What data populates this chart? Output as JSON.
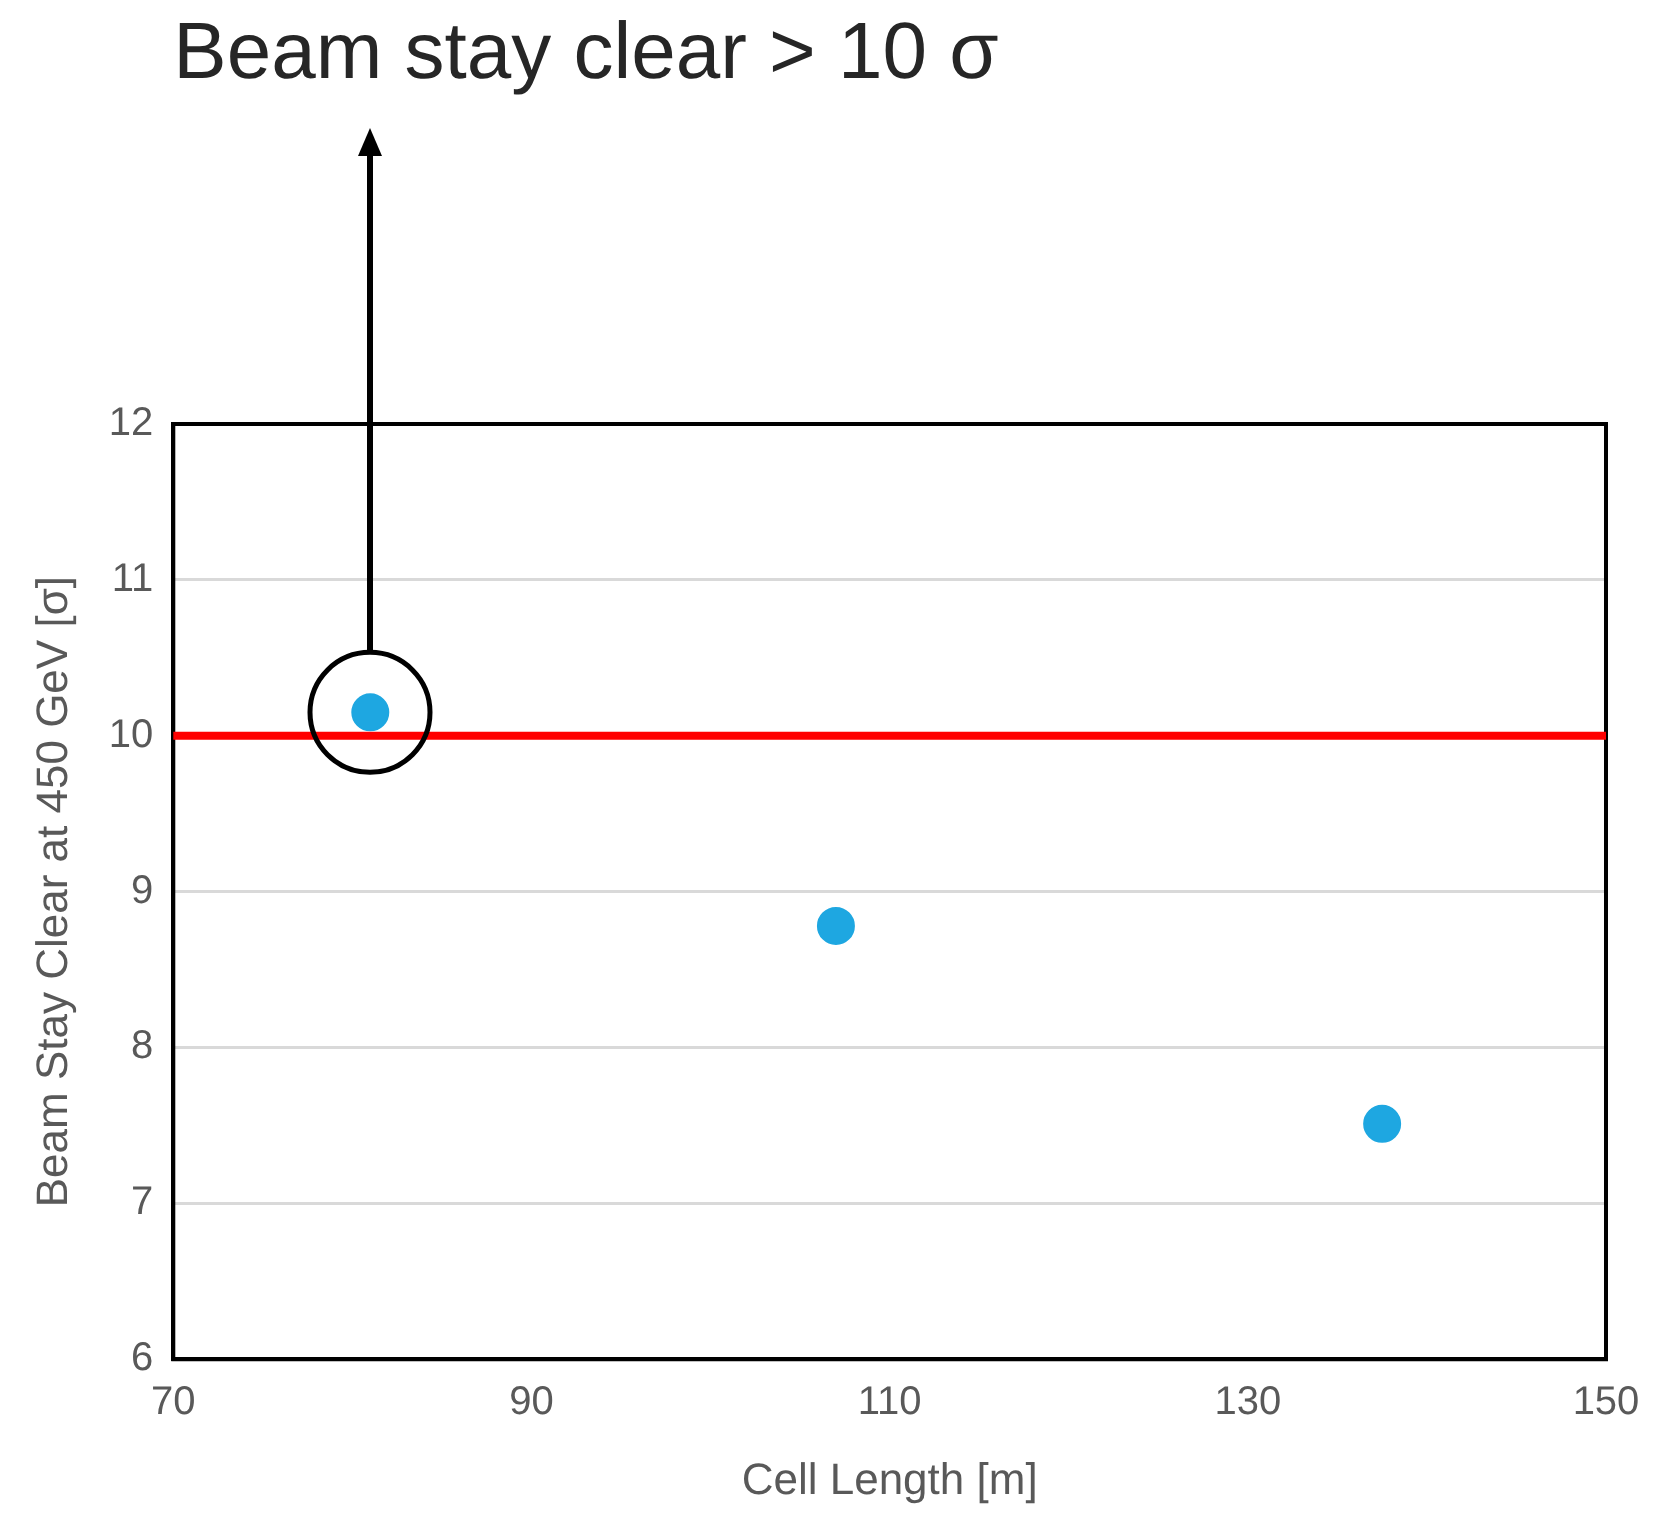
{
  "chart_data": {
    "type": "scatter",
    "xlabel": "Cell Length [m]",
    "ylabel": "Beam Stay Clear at 450 GeV [σ]",
    "x": [
      81,
      107,
      137.5
    ],
    "values": [
      10.15,
      8.78,
      7.51
    ],
    "color": "#1ea7e1",
    "marker": "circle",
    "xlim": [
      70,
      150
    ],
    "xticks": [
      70,
      90,
      110,
      130,
      150
    ],
    "ylim": [
      6,
      12
    ],
    "yticks": [
      6,
      7,
      8,
      9,
      10,
      11,
      12
    ],
    "grid": "y",
    "legend": false,
    "ref_lines": [
      {
        "axis": "y",
        "value": 10,
        "color": "#ff0000"
      }
    ],
    "annotations": [
      "Beam stay clear > 10 σ"
    ]
  }
}
